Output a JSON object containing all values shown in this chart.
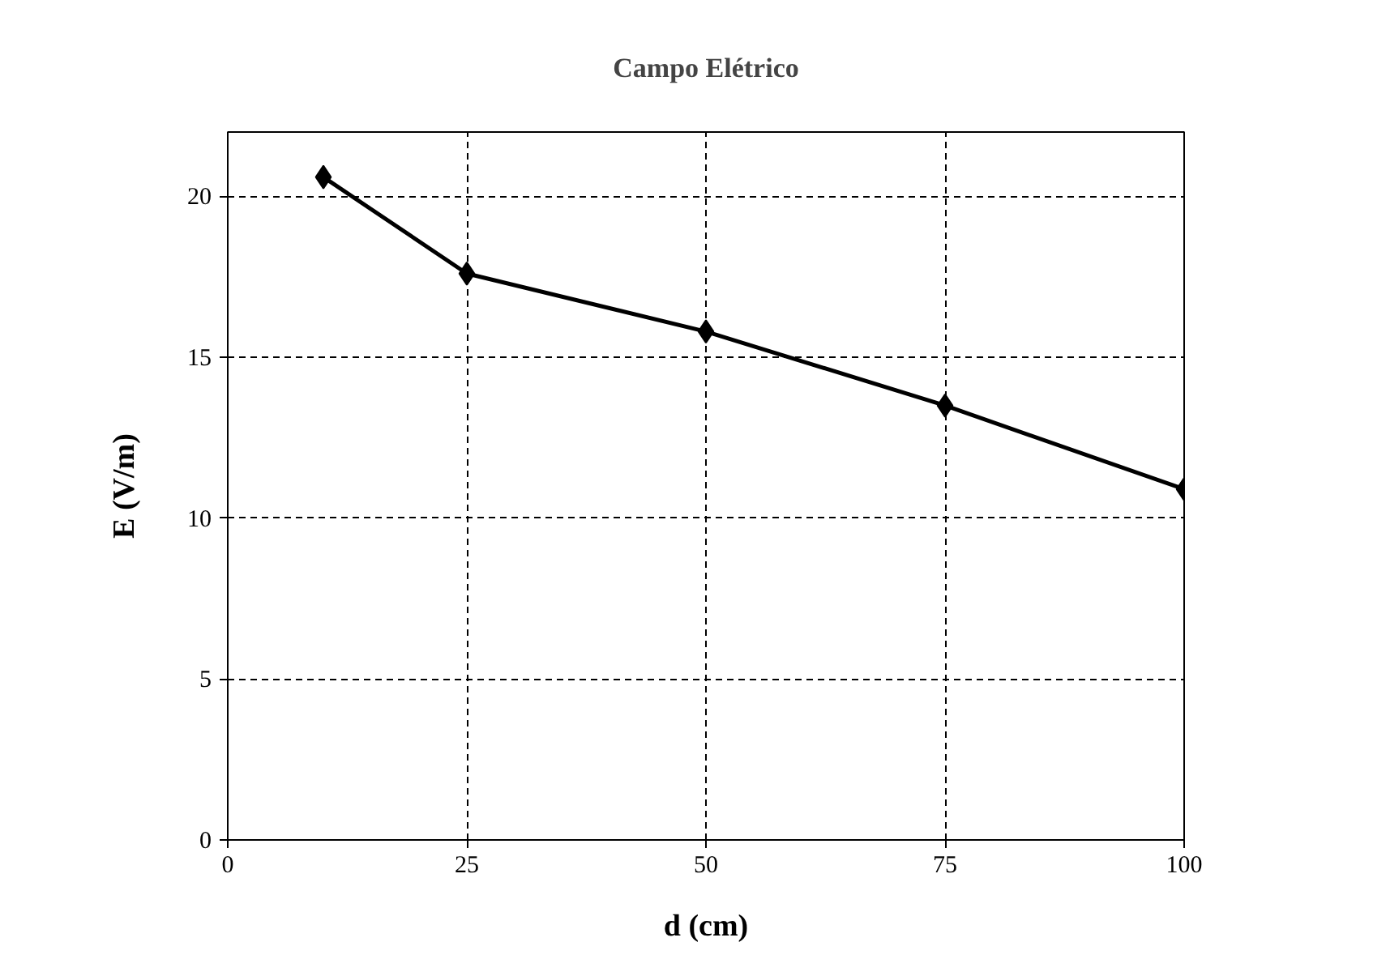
{
  "chart_data": {
    "type": "line",
    "title": "Campo Elétrico",
    "xlabel": "d (cm)",
    "ylabel": "E (V/m)",
    "x": [
      10,
      25,
      50,
      75,
      100
    ],
    "series": [
      {
        "color": "#000000",
        "values": [
          20.6,
          17.6,
          15.8,
          13.5,
          10.9
        ]
      }
    ],
    "xlim": [
      0,
      100
    ],
    "xticks": [
      0,
      25,
      50,
      75,
      100
    ],
    "ylim": [
      0,
      22
    ],
    "yticks": [
      0,
      5,
      10,
      15,
      20
    ],
    "grid": true,
    "marker": "diamond",
    "line_style": "solid"
  }
}
